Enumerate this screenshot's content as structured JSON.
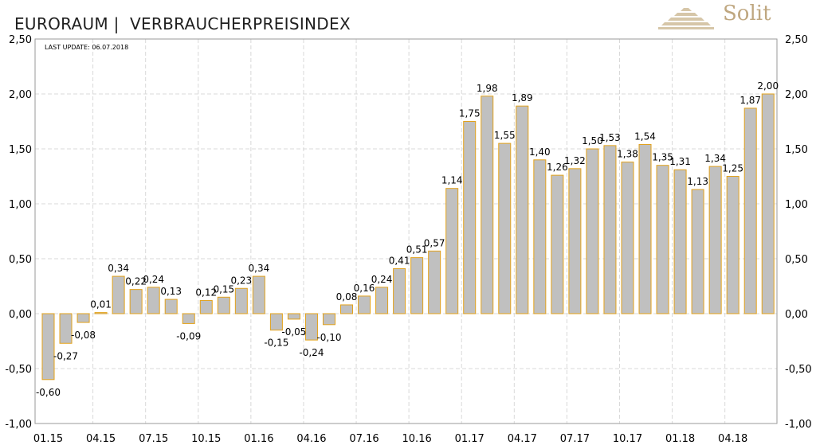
{
  "title": "EURORAUM |  VERBRAUCHERPREISINDEX",
  "brand": {
    "name": "Solit",
    "color": "#bfa780",
    "logo_icon": "stepped-pyramid-logo-icon"
  },
  "last_update": "LAST UPDATE: 06.07.2018",
  "colors": {
    "bar_fill": "#c0c0c0",
    "bar_stroke": "#e3a21a",
    "grid": "#d9d9d9",
    "axis": "#9a9a9a",
    "text": "#000000"
  },
  "chart_data": {
    "type": "bar",
    "categories": [
      "01.15",
      "02.15",
      "03.15",
      "04.15",
      "05.15",
      "06.15",
      "07.15",
      "08.15",
      "09.15",
      "10.15",
      "11.15",
      "12.15",
      "01.16",
      "02.16",
      "03.16",
      "04.16",
      "05.16",
      "06.16",
      "07.16",
      "08.16",
      "09.16",
      "10.16",
      "11.16",
      "12.16",
      "01.17",
      "02.17",
      "03.17",
      "04.17",
      "05.17",
      "06.17",
      "07.17",
      "08.17",
      "09.17",
      "10.17",
      "11.17",
      "12.17",
      "01.18",
      "02.18",
      "03.18",
      "04.18",
      "05.18",
      "06.18"
    ],
    "values": [
      -0.6,
      -0.27,
      -0.08,
      0.01,
      0.34,
      0.22,
      0.24,
      0.13,
      -0.09,
      0.12,
      0.15,
      0.23,
      0.34,
      -0.15,
      -0.05,
      -0.24,
      -0.1,
      0.08,
      0.16,
      0.24,
      0.41,
      0.51,
      0.57,
      1.14,
      1.75,
      1.98,
      1.55,
      1.89,
      1.4,
      1.26,
      1.32,
      1.5,
      1.53,
      1.38,
      1.54,
      1.35,
      1.31,
      1.13,
      1.34,
      1.25,
      1.87,
      2.0
    ],
    "data_labels": [
      "-0,60",
      "-0,27",
      "-0,08",
      "0,01",
      "0,34",
      "0,22",
      "0,24",
      "0,13",
      "-0,09",
      "0,12",
      "0,15",
      "0,23",
      "0,34",
      "-0,15",
      "-0,05",
      "-0,24",
      "-0,10",
      "0,08",
      "0,16",
      "0,24",
      "0,41",
      "0,51",
      "0,57",
      "1,14",
      "1,75",
      "1,98",
      "1,55",
      "1,89",
      "1,40",
      "1,26",
      "1,32",
      "1,50",
      "1,53",
      "1,38",
      "1,54",
      "1,35",
      "1,31",
      "1,13",
      "1,34",
      "1,25",
      "1,87",
      "2,00"
    ],
    "x_tick_labels": [
      "01.15",
      "04.15",
      "07.15",
      "10.15",
      "01.16",
      "04.16",
      "07.16",
      "10.16",
      "01.17",
      "04.17",
      "07.17",
      "10.17",
      "01.18",
      "04.18"
    ],
    "x_tick_indices": [
      0,
      3,
      6,
      9,
      12,
      15,
      18,
      21,
      24,
      27,
      30,
      33,
      36,
      39
    ],
    "y_tick_values": [
      2.5,
      2.0,
      1.5,
      1.0,
      0.5,
      0.0,
      -0.5,
      -1.0
    ],
    "y_tick_labels": [
      "2,50",
      "2,00",
      "1,50",
      "1,00",
      "0,50",
      "0,00",
      "-0,50",
      "-1,00"
    ],
    "ylim": [
      -1.0,
      2.5
    ],
    "grid": true,
    "dual_y_axis": true
  }
}
